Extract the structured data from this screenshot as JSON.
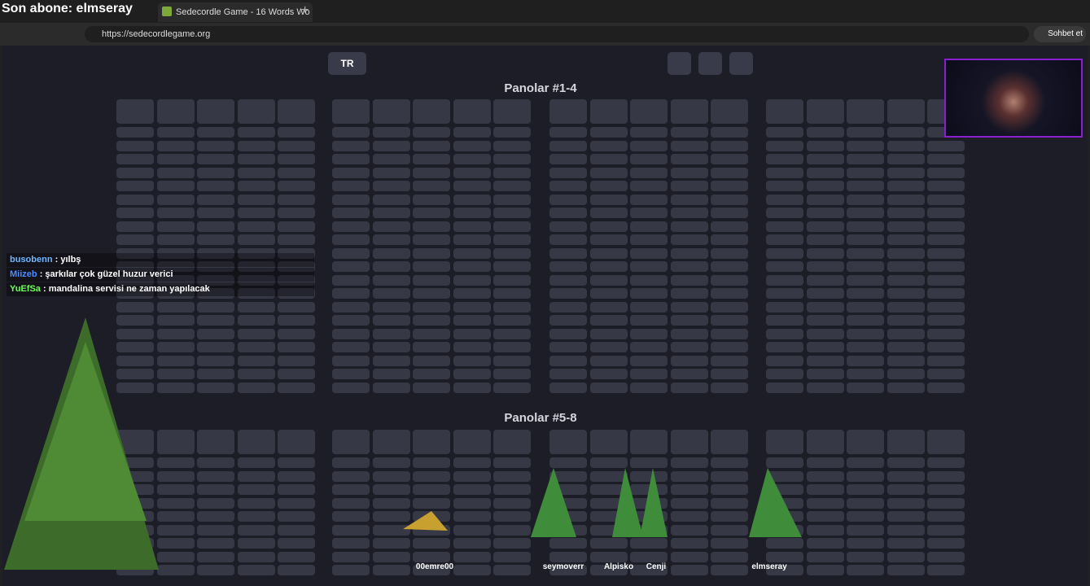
{
  "browser": {
    "overlay_text": "Son abone: elmseray",
    "tabs": [
      "Sedecordle Game - 16 Words Wo"
    ],
    "url": "https://sedecordlegame.org",
    "chat_button": "Sohbet et"
  },
  "game": {
    "language": "TR",
    "sections": [
      "Panolar #1-4",
      "Panolar #5-8"
    ]
  },
  "chat": [
    {
      "user": "busobenn",
      "message": ": yılbş"
    },
    {
      "user": "Miizeb",
      "message": ": şarkılar çok güzel huzur verici"
    },
    {
      "user": "YuEfSa",
      "message": ": mandalina servisi ne zaman yapılacak"
    }
  ],
  "avatars": [
    "00emre00",
    "seymoverr",
    "Alpisko",
    "Cenji",
    "elmseray"
  ]
}
